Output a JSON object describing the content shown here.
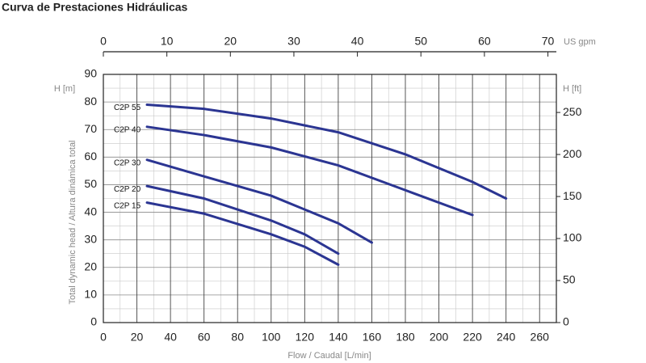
{
  "chart_data": {
    "type": "line",
    "title": "Curva de Prestaciones Hidráulicas",
    "x_label": "Flow / Caudal [L/min]",
    "y_label": "Total dynamic head / Altura dinámica total",
    "y_unit_label": "H [m]",
    "y2_unit_label": "H [ft]",
    "x2_unit_label": "US gpm",
    "xlim": [
      0,
      270
    ],
    "xticks": [
      0,
      20,
      40,
      60,
      80,
      100,
      120,
      140,
      160,
      180,
      200,
      220,
      240,
      260
    ],
    "x2lim": [
      0,
      71.33
    ],
    "x2ticks": [
      0,
      10,
      20,
      30,
      40,
      50,
      60,
      70
    ],
    "ylim": [
      0,
      90
    ],
    "yticks": [
      0,
      10,
      20,
      30,
      40,
      50,
      60,
      70,
      80,
      90
    ],
    "y2lim": [
      0,
      295.3
    ],
    "y2ticks": [
      0,
      50,
      100,
      150,
      200,
      250
    ],
    "grid": true,
    "series": [
      {
        "name": "C2P 55",
        "color": "#2b3592",
        "x": [
          26,
          60,
          100,
          140,
          180,
          220,
          240
        ],
        "values": [
          79,
          77.5,
          74,
          69,
          61,
          51,
          45
        ]
      },
      {
        "name": "C2P 40",
        "color": "#2b3592",
        "x": [
          26,
          60,
          100,
          140,
          180,
          220
        ],
        "values": [
          71,
          68,
          63.5,
          57,
          48,
          39
        ]
      },
      {
        "name": "C2P 30",
        "color": "#2b3592",
        "x": [
          26,
          60,
          100,
          140,
          160
        ],
        "values": [
          59,
          53,
          46,
          36,
          29
        ]
      },
      {
        "name": "C2P 20",
        "color": "#2b3592",
        "x": [
          26,
          60,
          100,
          120,
          140
        ],
        "values": [
          49.5,
          45,
          37,
          32,
          25
        ]
      },
      {
        "name": "C2P 15",
        "color": "#2b3592",
        "x": [
          26,
          60,
          100,
          120,
          140
        ],
        "values": [
          43.5,
          39.5,
          32,
          27.5,
          21
        ]
      }
    ]
  }
}
